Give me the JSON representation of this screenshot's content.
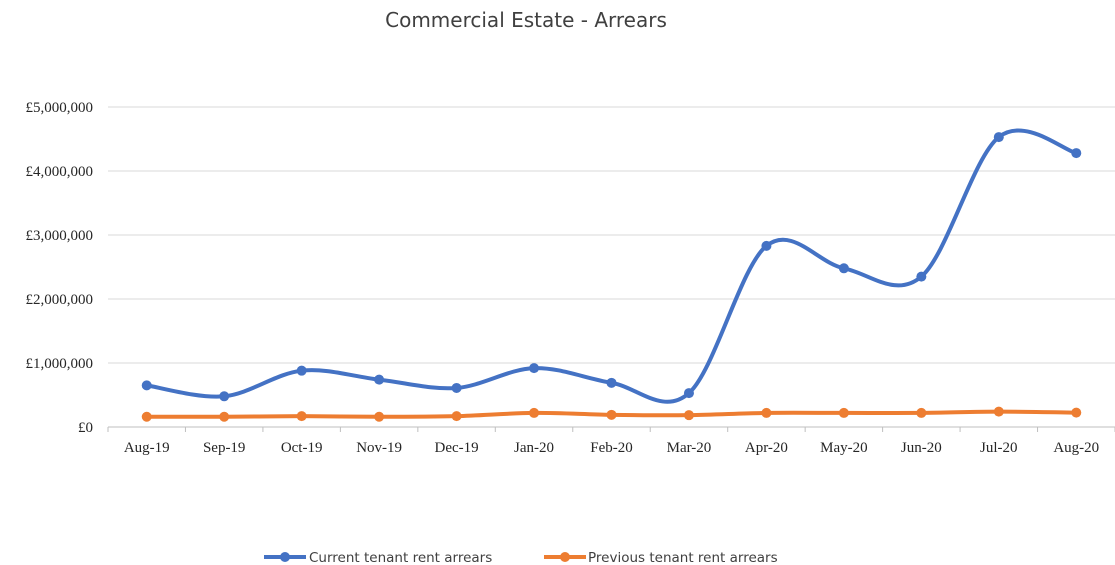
{
  "chart_data": {
    "type": "line",
    "title": "Commercial Estate - Arrears",
    "xlabel": "",
    "ylabel": "",
    "categories": [
      "Aug-19",
      "Sep-19",
      "Oct-19",
      "Nov-19",
      "Dec-19",
      "Jan-20",
      "Feb-20",
      "Mar-20",
      "Apr-20",
      "May-20",
      "Jun-20",
      "Jul-20",
      "Aug-20"
    ],
    "yticks": [
      "£0",
      "£1,000,000",
      "£2,000,000",
      "£3,000,000",
      "£4,000,000",
      "£5,000,000"
    ],
    "ylim": [
      0,
      5000000
    ],
    "grid": true,
    "smooth": true,
    "legend_position": "bottom",
    "series": [
      {
        "name": "Current tenant rent arrears",
        "color": "#4472C4",
        "values": [
          650000,
          480000,
          880000,
          740000,
          610000,
          920000,
          690000,
          530000,
          2830000,
          2480000,
          2350000,
          4530000,
          4280000
        ]
      },
      {
        "name": "Previous tenant rent arrears",
        "color": "#ED7D31",
        "values": [
          160000,
          160000,
          170000,
          160000,
          170000,
          220000,
          190000,
          185000,
          220000,
          220000,
          220000,
          240000,
          225000
        ]
      }
    ]
  }
}
